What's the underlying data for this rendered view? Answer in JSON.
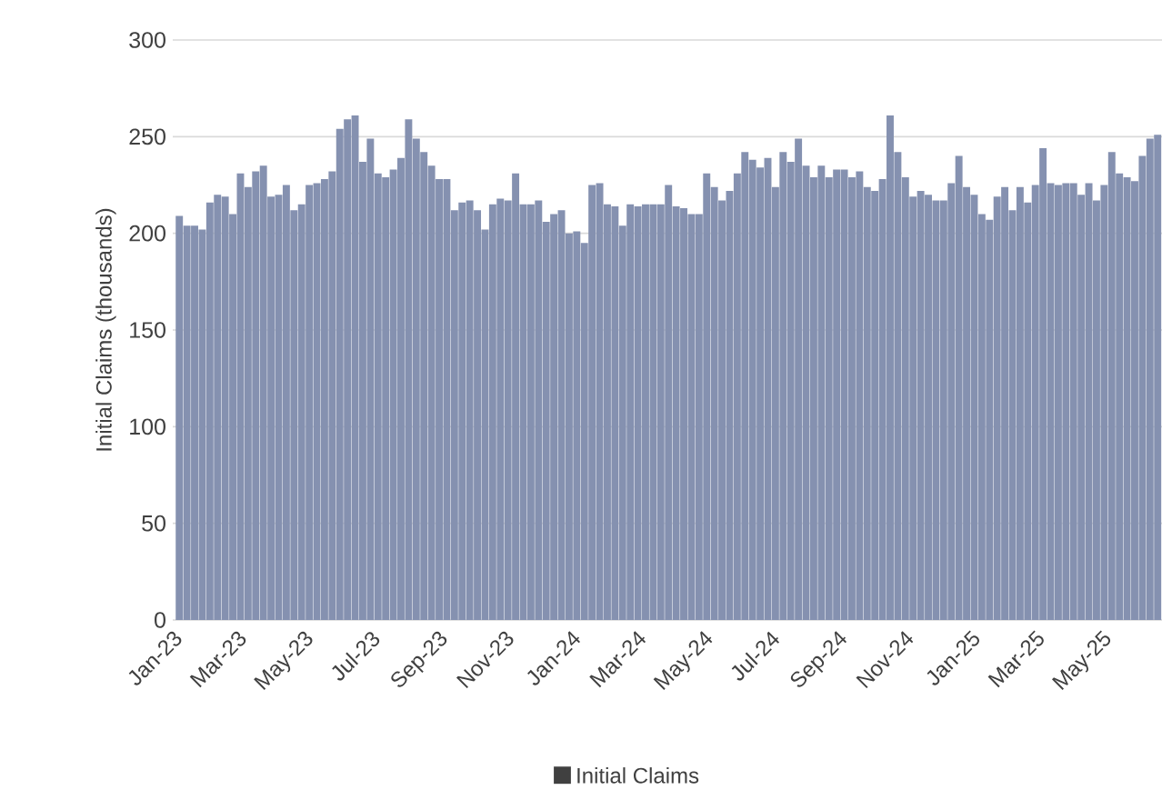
{
  "chart_data": {
    "type": "bar",
    "ylabel": "Initial Claims (thousands)",
    "x": [
      "2023-01-07",
      "2023-01-14",
      "2023-01-21",
      "2023-01-28",
      "2023-02-04",
      "2023-02-11",
      "2023-02-18",
      "2023-02-25",
      "2023-03-04",
      "2023-03-11",
      "2023-03-18",
      "2023-03-25",
      "2023-04-01",
      "2023-04-08",
      "2023-04-15",
      "2023-04-22",
      "2023-04-29",
      "2023-05-06",
      "2023-05-13",
      "2023-05-20",
      "2023-05-27",
      "2023-06-03",
      "2023-06-10",
      "2023-06-17",
      "2023-06-24",
      "2023-07-01",
      "2023-07-08",
      "2023-07-15",
      "2023-07-22",
      "2023-07-29",
      "2023-08-05",
      "2023-08-12",
      "2023-08-19",
      "2023-08-26",
      "2023-09-02",
      "2023-09-09",
      "2023-09-16",
      "2023-09-23",
      "2023-09-30",
      "2023-10-07",
      "2023-10-14",
      "2023-10-21",
      "2023-10-28",
      "2023-11-04",
      "2023-11-11",
      "2023-11-18",
      "2023-11-25",
      "2023-12-02",
      "2023-12-09",
      "2023-12-16",
      "2023-12-23",
      "2023-12-30",
      "2024-01-06",
      "2024-01-13",
      "2024-01-20",
      "2024-01-27",
      "2024-02-03",
      "2024-02-10",
      "2024-02-17",
      "2024-02-24",
      "2024-03-02",
      "2024-03-09",
      "2024-03-16",
      "2024-03-23",
      "2024-03-30",
      "2024-04-06",
      "2024-04-13",
      "2024-04-20",
      "2024-04-27",
      "2024-05-04",
      "2024-05-11",
      "2024-05-18",
      "2024-05-25",
      "2024-06-01",
      "2024-06-08",
      "2024-06-15",
      "2024-06-22",
      "2024-06-29",
      "2024-07-06",
      "2024-07-13",
      "2024-07-20",
      "2024-07-27",
      "2024-08-03",
      "2024-08-10",
      "2024-08-17",
      "2024-08-24",
      "2024-08-31",
      "2024-09-07",
      "2024-09-14",
      "2024-09-21",
      "2024-09-28",
      "2024-10-05",
      "2024-10-12",
      "2024-10-19",
      "2024-10-26",
      "2024-11-02",
      "2024-11-09",
      "2024-11-16",
      "2024-11-23",
      "2024-11-30",
      "2024-12-07",
      "2024-12-14",
      "2024-12-21",
      "2024-12-28",
      "2025-01-04",
      "2025-01-11",
      "2025-01-18",
      "2025-01-25",
      "2025-02-01",
      "2025-02-08",
      "2025-02-15",
      "2025-02-22",
      "2025-03-01",
      "2025-03-08",
      "2025-03-15",
      "2025-03-22",
      "2025-03-29",
      "2025-04-05",
      "2025-04-12",
      "2025-04-19",
      "2025-04-26",
      "2025-05-03",
      "2025-05-10",
      "2025-05-17",
      "2025-05-24",
      "2025-05-31",
      "2025-06-07",
      "2025-06-14",
      "2025-06-21"
    ],
    "series": [
      {
        "name": "Initial Claims",
        "color": "#8591b0",
        "values": [
          209,
          204,
          204,
          202,
          216,
          220,
          219,
          210,
          231,
          224,
          232,
          235,
          219,
          220,
          225,
          212,
          215,
          225,
          226,
          228,
          232,
          254,
          259,
          261,
          237,
          249,
          231,
          229,
          233,
          239,
          259,
          249,
          242,
          235,
          228,
          228,
          212,
          216,
          217,
          212,
          202,
          215,
          218,
          217,
          231,
          215,
          215,
          217,
          206,
          210,
          212,
          200,
          201,
          195,
          225,
          226,
          215,
          214,
          204,
          215,
          214,
          215,
          215,
          215,
          225,
          214,
          213,
          210,
          210,
          231,
          224,
          217,
          222,
          231,
          242,
          238,
          234,
          239,
          224,
          242,
          237,
          249,
          235,
          229,
          235,
          229,
          233,
          233,
          229,
          232,
          224,
          222,
          228,
          261,
          242,
          229,
          219,
          222,
          220,
          217,
          217,
          226,
          240,
          224,
          220,
          210,
          207,
          219,
          224,
          212,
          224,
          216,
          225,
          244,
          226,
          225,
          226,
          226,
          220,
          226,
          217,
          225,
          242,
          231,
          229,
          227,
          240,
          249,
          251
        ]
      }
    ],
    "xlim": [
      "2023-01-01",
      "2025-06-25"
    ],
    "xticks": [
      {
        "value": "2023-01-01",
        "label": "Jan-23"
      },
      {
        "value": "2023-03-01",
        "label": "Mar-23"
      },
      {
        "value": "2023-05-01",
        "label": "May-23"
      },
      {
        "value": "2023-07-01",
        "label": "Jul-23"
      },
      {
        "value": "2023-09-01",
        "label": "Sep-23"
      },
      {
        "value": "2023-11-01",
        "label": "Nov-23"
      },
      {
        "value": "2024-01-01",
        "label": "Jan-24"
      },
      {
        "value": "2024-03-01",
        "label": "Mar-24"
      },
      {
        "value": "2024-05-01",
        "label": "May-24"
      },
      {
        "value": "2024-07-01",
        "label": "Jul-24"
      },
      {
        "value": "2024-09-01",
        "label": "Sep-24"
      },
      {
        "value": "2024-11-01",
        "label": "Nov-24"
      },
      {
        "value": "2025-01-01",
        "label": "Jan-25"
      },
      {
        "value": "2025-03-01",
        "label": "Mar-25"
      },
      {
        "value": "2025-05-01",
        "label": "May-25"
      }
    ],
    "ylim": [
      0,
      300
    ],
    "yticks": [
      0,
      50,
      100,
      150,
      200,
      250,
      300
    ],
    "grid": "y",
    "legend": "bottom"
  }
}
